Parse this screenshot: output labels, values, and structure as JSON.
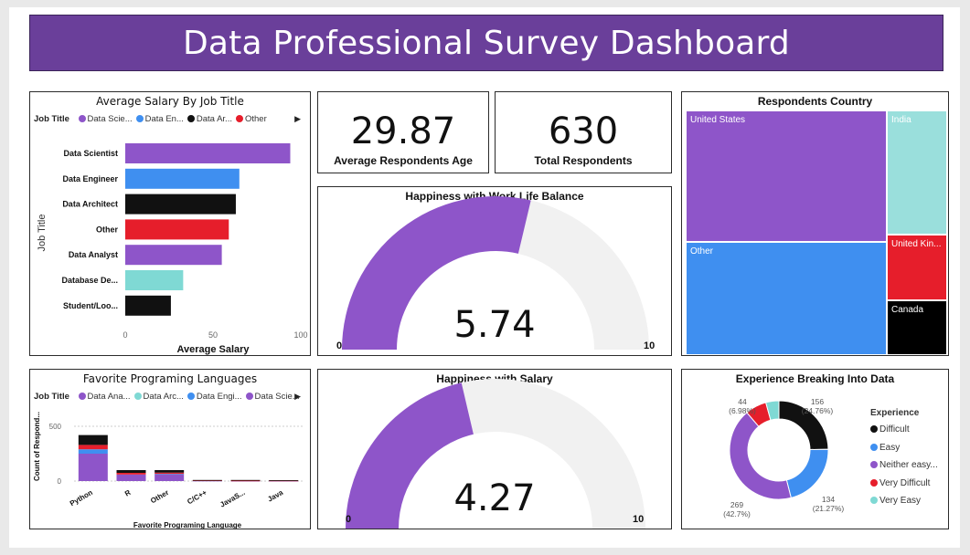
{
  "header": {
    "title": "Data Professional Survey Dashboard"
  },
  "salary_chart": {
    "title": "Average Salary By Job Title",
    "legend_label": "Job Title",
    "legend_items": [
      {
        "label": "Data Scie...",
        "color": "#8e55c9"
      },
      {
        "label": "Data En...",
        "color": "#3f8ff0"
      },
      {
        "label": "Data Ar...",
        "color": "#111111"
      },
      {
        "label": "Other",
        "color": "#e61e2b"
      }
    ],
    "more_icon": "chevron-right-icon",
    "chart_data": {
      "type": "bar",
      "orientation": "horizontal",
      "categories": [
        "Data Scientist",
        "Data Engineer",
        "Data Architect",
        "Other",
        "Data Analyst",
        "Database De...",
        "Student/Loo..."
      ],
      "values": [
        94,
        65,
        63,
        59,
        55,
        33,
        26
      ],
      "colors": [
        "#8e55c9",
        "#3f8ff0",
        "#111111",
        "#e61e2b",
        "#8e55c9",
        "#7fd9d4",
        "#111111"
      ],
      "xlabel": "Average Salary",
      "ylabel": "Job Title",
      "xlim": [
        0,
        100
      ],
      "xticks": [
        "0",
        "50",
        "100"
      ]
    }
  },
  "kpi_age": {
    "value": "29.87",
    "label": "Average Respondents Age"
  },
  "kpi_total": {
    "value": "630",
    "label": "Total Respondents"
  },
  "gauge_worklife": {
    "title": "Happiness with Work Life Balance",
    "value": "5.74",
    "value_num": 5.74,
    "min": "0",
    "max": "10",
    "min_num": 0,
    "max_num": 10,
    "fill_color": "#8e55c9",
    "track_color": "#f1f1f1"
  },
  "gauge_salary": {
    "title": "Happiness with Salary",
    "value": "4.27",
    "value_num": 4.27,
    "min": "0",
    "max": "10",
    "min_num": 0,
    "max_num": 10,
    "fill_color": "#8e55c9",
    "track_color": "#f1f1f1"
  },
  "country_treemap": {
    "title": "Respondents Country",
    "cells": [
      {
        "label": "United States",
        "color": "#8e55c9"
      },
      {
        "label": "Other",
        "color": "#3f8ff0"
      },
      {
        "label": "India",
        "color": "#9adfdc"
      },
      {
        "label": "United Kin...",
        "color": "#e61e2b"
      },
      {
        "label": "Canada",
        "color": "#000000"
      }
    ]
  },
  "languages_chart": {
    "title": "Favorite Programing Languages",
    "legend_label": "Job Title",
    "legend_items": [
      {
        "label": "Data Ana...",
        "color": "#8e55c9"
      },
      {
        "label": "Data Arc...",
        "color": "#7fd9d4"
      },
      {
        "label": "Data Engi...",
        "color": "#3f8ff0"
      },
      {
        "label": "Data Scie...",
        "color": "#8e55c9"
      }
    ],
    "more_icon": "chevron-right-icon",
    "chart_data": {
      "type": "bar",
      "stacked": true,
      "categories": [
        "Python",
        "R",
        "Other",
        "C/C++",
        "JavaS...",
        "Java"
      ],
      "series": [
        {
          "values": [
            250,
            60,
            60,
            4,
            3,
            3
          ],
          "color": "#8e55c9"
        },
        {
          "values": [
            40,
            0,
            5,
            0,
            0,
            0
          ],
          "color": "#3f8ff0"
        },
        {
          "values": [
            40,
            15,
            12,
            3,
            2,
            2
          ],
          "color": "#e61e2b"
        },
        {
          "values": [
            90,
            25,
            23,
            3,
            5,
            3
          ],
          "color": "#111111"
        }
      ],
      "xlabel": "Favorite Programing Language",
      "ylabel": "Count of Respond...",
      "ylim": [
        0,
        650
      ],
      "yticks": [
        "0",
        "500"
      ]
    }
  },
  "experience_donut": {
    "title": "Experience Breaking Into Data",
    "legend_title": "Experience",
    "chart_data": {
      "type": "pie",
      "donut": true,
      "slices": [
        {
          "label": "Difficult",
          "value": 156,
          "display": "156",
          "pct": "(24.76%)",
          "color": "#111111"
        },
        {
          "label": "Easy",
          "value": 134,
          "display": "134",
          "pct": "(21.27%)",
          "color": "#3f8ff0"
        },
        {
          "label": "Neither easy...",
          "value": 269,
          "display": "269",
          "pct": "(42.7%)",
          "color": "#8e55c9"
        },
        {
          "label": "Very Difficult",
          "value": 44,
          "display": "44",
          "pct": "(6.98%)",
          "color": "#e61e2b"
        },
        {
          "label": "Very Easy",
          "value": 27,
          "display": "",
          "pct": "",
          "color": "#7fd9d4"
        }
      ]
    }
  }
}
